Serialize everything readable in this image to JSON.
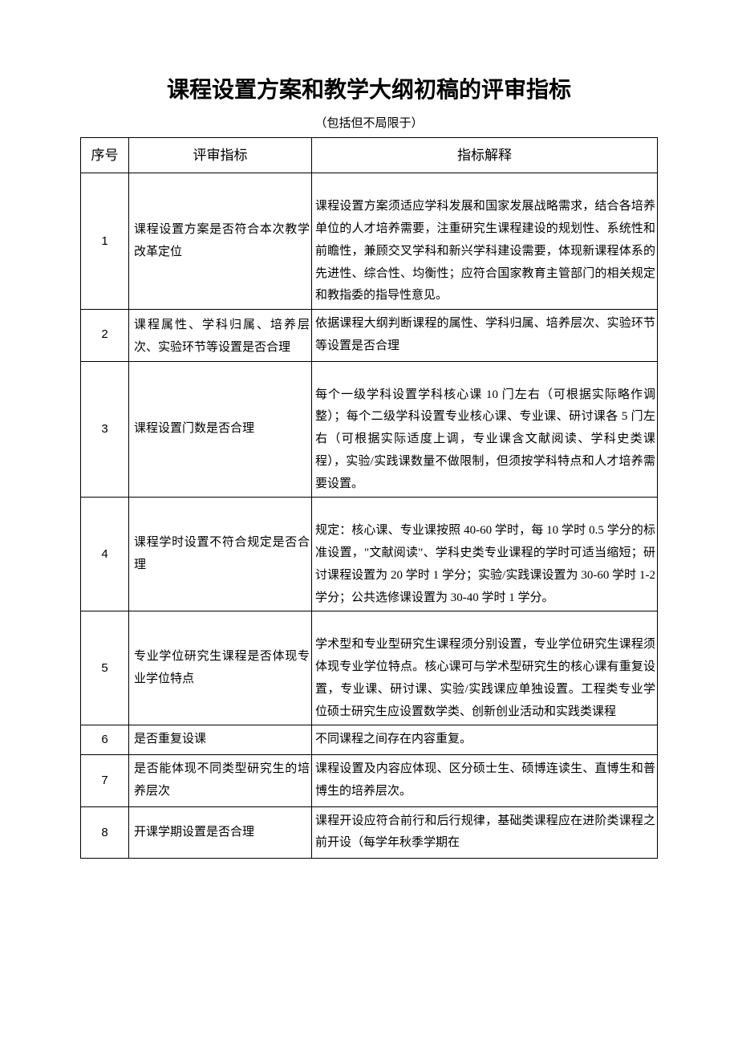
{
  "document": {
    "title": "课程设置方案和教学大纲初稿的评审指标",
    "subtitle": "（包括但不局限于）",
    "columns": {
      "seq": "序号",
      "indicator": "评审指标",
      "explain": "指标解释"
    },
    "rows": [
      {
        "seq": "1",
        "indicator": "课程设置方案是否符合本次教学改革定位",
        "explain": "课程设置方案须适应学科发展和国家发展战略需求，结合各培养单位的人才培养需要，注重研究生课程建设的规划性、系统性和前瞻性，兼顾交叉学科和新兴学科建设需要，体现新课程体系的先进性、综合性、均衡性；应符合国家教育主管部门的相关规定和教指委的指导性意见。"
      },
      {
        "seq": "2",
        "indicator": "课程属性、学科归属、培养层次、实验环节等设置是否合理",
        "explain": "依据课程大纲判断课程的属性、学科归属、培养层次、实验环节等设置是否合理"
      },
      {
        "seq": "3",
        "indicator": "课程设置门数是否合理",
        "explain": "每个一级学科设置学科核心课 10 门左右（可根据实际略作调整）；每个二级学科设置专业核心课、专业课、研讨课各 5 门左右（可根据实际适度上调，专业课含文献阅读、学科史类课程），实验/实践课数量不做限制，但须按学科特点和人才培养需要设置。"
      },
      {
        "seq": "4",
        "indicator": "课程学时设置不符合规定是否合理",
        "explain": "规定：核心课、专业课按照 40-60 学时，每 10 学时 0.5 学分的标准设置，\"文献阅读\"、学科史类专业课程的学时可适当缩短；研讨课程设置为 20 学时 1 学分；实验/实践课设置为 30-60 学时 1-2 学分；公共选修课设置为 30-40 学时 1 学分。"
      },
      {
        "seq": "5",
        "indicator": "专业学位研究生课程是否体现专业学位特点",
        "explain": "学术型和专业型研究生课程须分别设置，专业学位研究生课程须体现专业学位特点。核心课可与学术型研究生的核心课有重复设置，专业课、研讨课、实验/实践课应单独设置。工程类专业学位硕士研究生应设置数学类、创新创业活动和实践类课程"
      },
      {
        "seq": "6",
        "indicator": "是否重复设课",
        "explain": "不同课程之间存在内容重复。"
      },
      {
        "seq": "7",
        "indicator": "是否能体现不同类型研究生的培养层次",
        "explain": "课程设置及内容应体现、区分硕士生、硕博连读生、直博生和普博生的培养层次。"
      },
      {
        "seq": "8",
        "indicator": "开课学期设置是否合理",
        "explain": "课程开设应符合前行和后行规律，基础类课程应在进阶类课程之前开设（每学年秋季学期在"
      }
    ]
  }
}
